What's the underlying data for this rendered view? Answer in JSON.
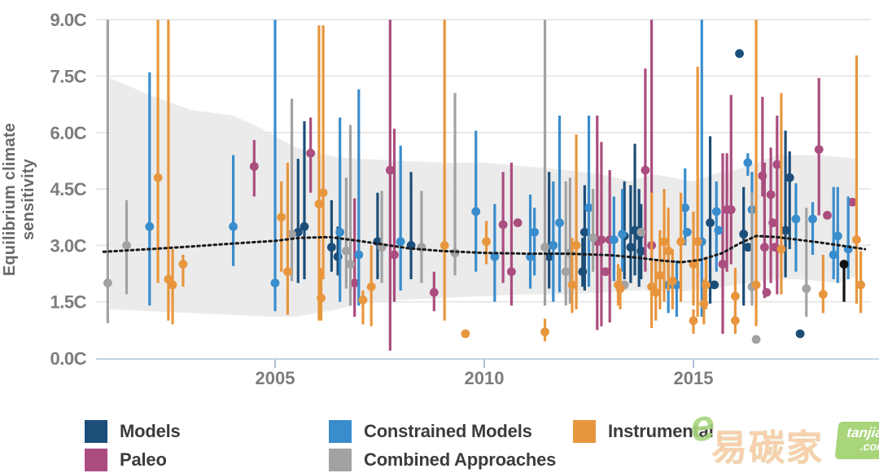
{
  "y_axis": {
    "title": "Equilibrium climate sensitivity",
    "ticks": [
      "0.0C",
      "1.5C",
      "3.0C",
      "4.5C",
      "6.0C",
      "7.5C",
      "9.0C"
    ],
    "tick_values": [
      0,
      1.5,
      3.0,
      4.5,
      6.0,
      7.5,
      9.0
    ]
  },
  "x_axis": {
    "ticks": [
      "2005",
      "2010",
      "2015"
    ],
    "tick_values": [
      2005,
      2010,
      2015
    ],
    "range": [
      2000.75,
      2019.25
    ]
  },
  "colors": {
    "models": "#1b4e79",
    "paleo": "#ab4d7f",
    "constrained": "#3a8dcc",
    "combined": "#a2a2a2",
    "instrumental": "#e8963e",
    "other": "#111111",
    "band": "#e9e9e9",
    "dotted_line": "#1a1a1a",
    "grid": "#e3e3e3",
    "axis_line": "#c2d4e6",
    "tick_mark": "#aebfd4",
    "tick_label": "#7d7d7d",
    "axis_title": "#696969",
    "legend_text": "#3c3c3c",
    "watermark_green": "#9fd06c",
    "watermark_peach": "#f8cba6"
  },
  "legend": [
    {
      "label": "Models",
      "series": "models"
    },
    {
      "label": "Paleo",
      "series": "paleo"
    },
    {
      "label": "Constrained Models",
      "series": "constrained"
    },
    {
      "label": "Combined Approaches",
      "series": "combined"
    },
    {
      "label": "Instrumental",
      "series": "instrumental"
    }
  ],
  "watermark": {
    "text": "易碳家",
    "logo": "e",
    "badge_line1": "tanjiaoyi",
    "badge_line2": ".com"
  },
  "chart_data": {
    "type": "scatter",
    "title": "",
    "xlabel": "",
    "ylabel": "Equilibrium climate sensitivity",
    "ylim": [
      0,
      9
    ],
    "xlim": [
      2000.75,
      2019.25
    ],
    "grid": true,
    "legend_position": "bottom",
    "point_format": "[year, value, err_low, err_high]",
    "band": {
      "name": "shaded-likely-range",
      "top": [
        [
          2001.05,
          7.45
        ],
        [
          2002,
          7.0
        ],
        [
          2002.5,
          6.8
        ],
        [
          2003,
          6.6
        ],
        [
          2004,
          6.45
        ],
        [
          2004.5,
          6.2
        ],
        [
          2005,
          5.9
        ],
        [
          2005.5,
          5.6
        ],
        [
          2006,
          5.45
        ],
        [
          2006.5,
          5.35
        ],
        [
          2007,
          5.3
        ],
        [
          2008,
          5.25
        ],
        [
          2009,
          5.2
        ],
        [
          2010,
          5.2
        ],
        [
          2011,
          5.1
        ],
        [
          2012,
          5.0
        ],
        [
          2013,
          4.85
        ],
        [
          2013.5,
          4.7
        ],
        [
          2014,
          4.9
        ],
        [
          2014.5,
          4.8
        ],
        [
          2015,
          4.7
        ],
        [
          2015.5,
          4.9
        ],
        [
          2016,
          5.0
        ],
        [
          2016.5,
          5.2
        ],
        [
          2017,
          5.4
        ],
        [
          2018,
          5.4
        ],
        [
          2018.5,
          5.35
        ],
        [
          2018.9,
          5.3
        ]
      ],
      "bottom": [
        [
          2001.05,
          1.3
        ],
        [
          2002,
          1.25
        ],
        [
          2003,
          1.2
        ],
        [
          2004,
          1.15
        ],
        [
          2005,
          1.1
        ],
        [
          2005.5,
          1.1
        ],
        [
          2006,
          1.2
        ],
        [
          2006.5,
          1.3
        ],
        [
          2007,
          1.45
        ],
        [
          2008,
          1.55
        ],
        [
          2009,
          1.6
        ],
        [
          2010,
          1.65
        ],
        [
          2011,
          1.7
        ],
        [
          2012,
          1.7
        ],
        [
          2013,
          1.75
        ],
        [
          2013.5,
          1.8
        ],
        [
          2014,
          1.8
        ],
        [
          2014.5,
          1.75
        ],
        [
          2015,
          1.8
        ],
        [
          2015.5,
          1.85
        ],
        [
          2016,
          1.95
        ],
        [
          2016.5,
          2.05
        ],
        [
          2017,
          2.1
        ],
        [
          2017.5,
          2.1
        ],
        [
          2018,
          2.05
        ],
        [
          2018.5,
          2.0
        ],
        [
          2018.9,
          2.2
        ]
      ]
    },
    "trend_line": {
      "name": "running-mean-dotted",
      "points": [
        [
          2000.9,
          2.83
        ],
        [
          2002,
          2.9
        ],
        [
          2003,
          2.97
        ],
        [
          2004,
          3.05
        ],
        [
          2005,
          3.12
        ],
        [
          2005.6,
          3.2
        ],
        [
          2006.3,
          3.22
        ],
        [
          2007,
          3.12
        ],
        [
          2007.6,
          3.02
        ],
        [
          2008.2,
          2.92
        ],
        [
          2009,
          2.85
        ],
        [
          2010,
          2.8
        ],
        [
          2011,
          2.78
        ],
        [
          2012,
          2.78
        ],
        [
          2013,
          2.74
        ],
        [
          2013.6,
          2.68
        ],
        [
          2014.2,
          2.6
        ],
        [
          2014.7,
          2.55
        ],
        [
          2015.2,
          2.62
        ],
        [
          2015.7,
          2.8
        ],
        [
          2016.1,
          3.05
        ],
        [
          2016.5,
          3.25
        ],
        [
          2017,
          3.22
        ],
        [
          2017.5,
          3.15
        ],
        [
          2018,
          3.08
        ],
        [
          2018.5,
          3.0
        ],
        [
          2019.1,
          2.9
        ]
      ]
    },
    "series": [
      {
        "name": "Models",
        "key": "models",
        "points": [
          [
            2005.55,
            3.35,
            2.0,
            5.3
          ],
          [
            2005.7,
            3.5,
            2.1,
            6.3
          ],
          [
            2006.35,
            2.95,
            2.3,
            4.2
          ],
          [
            2006.5,
            2.7,
            2.2,
            3.5
          ],
          [
            2007.45,
            3.1,
            2.1,
            4.4
          ],
          [
            2008.25,
            3.0,
            2.1,
            4.95
          ],
          [
            2011.55,
            2.7,
            1.85,
            4.95
          ],
          [
            2012.35,
            2.3,
            1.9,
            3.2
          ],
          [
            2012.4,
            3.35,
            1.8,
            4.6
          ],
          [
            2013.35,
            3.25,
            2.1,
            4.7
          ],
          [
            2013.5,
            2.95,
            2.0,
            4.6
          ],
          [
            2013.6,
            3.4,
            2.2,
            5.7
          ],
          [
            2013.7,
            3.25,
            1.9,
            4.5
          ],
          [
            2013.75,
            2.85,
            2.1,
            4.1
          ],
          [
            2015.4,
            3.6,
            1.45,
            5.9
          ],
          [
            2015.5,
            1.95,
            null,
            null
          ],
          [
            2016.1,
            8.1,
            null,
            null
          ],
          [
            2016.2,
            3.3,
            1.4,
            4.55
          ],
          [
            2016.3,
            2.95,
            null,
            null
          ],
          [
            2017.2,
            3.4,
            2.15,
            6.05
          ],
          [
            2017.3,
            4.8,
            2.9,
            5.5
          ],
          [
            2017.55,
            0.65,
            null,
            null
          ]
        ]
      },
      {
        "name": "Paleo",
        "key": "paleo",
        "points": [
          [
            2004.5,
            5.1,
            4.3,
            5.8
          ],
          [
            2005.85,
            5.45,
            4.4,
            6.4
          ],
          [
            2006.9,
            2.0,
            1.1,
            4.25
          ],
          [
            2007.75,
            5.0,
            0.2,
            9.0
          ],
          [
            2007.85,
            2.75,
            1.5,
            6.1
          ],
          [
            2008.8,
            1.75,
            1.25,
            2.3
          ],
          [
            2010.45,
            3.55,
            2.0,
            4.95
          ],
          [
            2010.65,
            2.3,
            1.4,
            5.2
          ],
          [
            2010.8,
            3.6,
            null,
            null
          ],
          [
            2012.7,
            3.1,
            0.75,
            6.45
          ],
          [
            2012.8,
            3.15,
            0.85,
            5.75
          ],
          [
            2012.9,
            2.3,
            null,
            null
          ],
          [
            2013.0,
            3.15,
            0.95,
            5.0
          ],
          [
            2013.85,
            5.0,
            2.3,
            7.7
          ],
          [
            2014.0,
            3.0,
            2.2,
            9.0
          ],
          [
            2015.7,
            2.5,
            0.65,
            5.45
          ],
          [
            2015.8,
            3.95,
            2.3,
            5.45
          ],
          [
            2015.9,
            3.95,
            2.5,
            7.0
          ],
          [
            2016.65,
            4.85,
            4.3,
            6.95
          ],
          [
            2016.7,
            2.95,
            1.6,
            5.2
          ],
          [
            2016.75,
            1.75,
            null,
            null
          ],
          [
            2016.85,
            4.35,
            2.0,
            5.6
          ],
          [
            2016.9,
            3.6,
            null,
            null
          ],
          [
            2016.95,
            2.95,
            null,
            null
          ],
          [
            2017.0,
            5.15,
            1.7,
            6.45
          ],
          [
            2018.0,
            5.55,
            3.8,
            7.45
          ],
          [
            2018.2,
            3.8,
            null,
            null
          ],
          [
            2018.8,
            4.15,
            null,
            null
          ]
        ]
      },
      {
        "name": "Constrained Models",
        "key": "constrained",
        "points": [
          [
            2002.0,
            3.5,
            1.4,
            7.6
          ],
          [
            2004.0,
            3.5,
            2.45,
            5.4
          ],
          [
            2005.0,
            2.0,
            1.25,
            9.0
          ],
          [
            2006.55,
            3.35,
            1.5,
            6.4
          ],
          [
            2007.0,
            2.75,
            1.4,
            7.15
          ],
          [
            2008.0,
            3.1,
            1.8,
            5.65
          ],
          [
            2009.8,
            3.9,
            2.3,
            6.05
          ],
          [
            2010.25,
            2.7,
            1.5,
            4.1
          ],
          [
            2011.1,
            2.7,
            1.85,
            4.35
          ],
          [
            2011.2,
            3.35,
            2.2,
            4.0
          ],
          [
            2011.65,
            3.0,
            1.5,
            4.7
          ],
          [
            2011.8,
            3.6,
            1.75,
            6.45
          ],
          [
            2012.5,
            4.0,
            1.9,
            6.45
          ],
          [
            2013.1,
            3.15,
            2.05,
            4.3
          ],
          [
            2013.3,
            3.3,
            2.3,
            4.5
          ],
          [
            2014.4,
            1.95,
            1.2,
            2.8
          ],
          [
            2014.6,
            1.95,
            1.1,
            2.6
          ],
          [
            2014.8,
            4.0,
            3.0,
            5.05
          ],
          [
            2014.85,
            3.35,
            null,
            null
          ],
          [
            2015.2,
            3.1,
            1.1,
            9.0
          ],
          [
            2015.55,
            3.9,
            2.3,
            4.7
          ],
          [
            2015.6,
            3.4,
            null,
            null
          ],
          [
            2016.3,
            5.2,
            4.85,
            5.45
          ],
          [
            2016.4,
            3.95,
            2.05,
            4.95
          ],
          [
            2017.45,
            3.7,
            2.3,
            4.65
          ],
          [
            2017.85,
            3.7,
            2.75,
            4.15
          ],
          [
            2018.35,
            2.75,
            2.1,
            4.55
          ],
          [
            2018.45,
            3.25,
            2.0,
            4.55
          ],
          [
            2018.7,
            2.9,
            2.1,
            4.3
          ]
        ]
      },
      {
        "name": "Combined Approaches",
        "key": "combined",
        "points": [
          [
            2001.0,
            2.0,
            0.93,
            9.0
          ],
          [
            2001.45,
            3.0,
            1.7,
            4.2
          ],
          [
            2005.4,
            3.3,
            2.05,
            6.9
          ],
          [
            2006.7,
            2.85,
            1.85,
            4.8
          ],
          [
            2006.8,
            2.5,
            1.4,
            6.2
          ],
          [
            2007.55,
            2.95,
            2.0,
            4.45
          ],
          [
            2008.5,
            2.95,
            2.0,
            4.45
          ],
          [
            2009.3,
            2.8,
            2.2,
            7.05
          ],
          [
            2011.45,
            2.95,
            1.4,
            9.0
          ],
          [
            2011.95,
            2.3,
            1.4,
            4.7
          ],
          [
            2012.05,
            2.8,
            1.45,
            4.8
          ],
          [
            2012.6,
            3.2,
            2.3,
            4.5
          ],
          [
            2013.35,
            1.95,
            null,
            null
          ],
          [
            2013.75,
            3.35,
            null,
            null
          ],
          [
            2016.4,
            1.9,
            1.4,
            4.4
          ],
          [
            2016.5,
            0.5,
            null,
            null
          ],
          [
            2017.7,
            1.85,
            1.1,
            4.0
          ]
        ]
      },
      {
        "name": "Instrumental",
        "key": "instrumental",
        "points": [
          [
            2002.2,
            4.8,
            2.0,
            9.0
          ],
          [
            2002.45,
            2.1,
            1.0,
            9.0
          ],
          [
            2002.55,
            1.95,
            0.9,
            2.9
          ],
          [
            2002.8,
            2.5,
            1.9,
            2.75
          ],
          [
            2005.15,
            3.75,
            2.3,
            4.7
          ],
          [
            2005.3,
            2.3,
            1.15,
            5.2
          ],
          [
            2006.05,
            4.1,
            1.0,
            8.85
          ],
          [
            2006.1,
            1.6,
            1.0,
            2.4
          ],
          [
            2006.15,
            4.4,
            2.1,
            8.85
          ],
          [
            2007.1,
            1.55,
            0.9,
            1.8
          ],
          [
            2007.3,
            1.9,
            0.85,
            3.0
          ],
          [
            2009.05,
            3.0,
            1.0,
            9.0
          ],
          [
            2009.55,
            0.65,
            null,
            null
          ],
          [
            2010.05,
            3.1,
            2.5,
            3.65
          ],
          [
            2011.45,
            0.7,
            0.45,
            1.05
          ],
          [
            2012.1,
            1.95,
            1.2,
            3.2
          ],
          [
            2012.2,
            3.0,
            1.3,
            5.95
          ],
          [
            2013.2,
            1.95,
            1.4,
            2.5
          ],
          [
            2013.25,
            1.85,
            1.3,
            2.4
          ],
          [
            2014.0,
            1.9,
            0.8,
            4.4
          ],
          [
            2014.1,
            1.75,
            1.0,
            2.6
          ],
          [
            2014.2,
            2.2,
            1.3,
            3.4
          ],
          [
            2014.3,
            3.1,
            1.5,
            4.5
          ],
          [
            2014.4,
            2.85,
            1.8,
            4.0
          ],
          [
            2014.5,
            2.05,
            1.3,
            2.9
          ],
          [
            2014.7,
            3.1,
            1.5,
            4.4
          ],
          [
            2015.0,
            2.5,
            1.4,
            3.9
          ],
          [
            2015.0,
            1.0,
            0.65,
            1.3
          ],
          [
            2015.1,
            3.1,
            1.1,
            7.75
          ],
          [
            2015.25,
            1.45,
            0.9,
            2.1
          ],
          [
            2015.3,
            1.95,
            1.3,
            2.7
          ],
          [
            2016.0,
            1.65,
            0.95,
            2.4
          ],
          [
            2016.0,
            1.0,
            0.65,
            1.3
          ],
          [
            2016.5,
            1.95,
            0.85,
            9.0
          ],
          [
            2017.1,
            2.9,
            1.7,
            7.05
          ],
          [
            2018.1,
            1.7,
            1.2,
            2.75
          ],
          [
            2018.9,
            3.15,
            1.45,
            8.05
          ],
          [
            2019.0,
            1.95,
            1.2,
            2.85
          ]
        ]
      },
      {
        "name": "Other",
        "key": "other",
        "points": [
          [
            2018.6,
            2.5,
            1.5,
            2.55
          ]
        ]
      }
    ]
  }
}
